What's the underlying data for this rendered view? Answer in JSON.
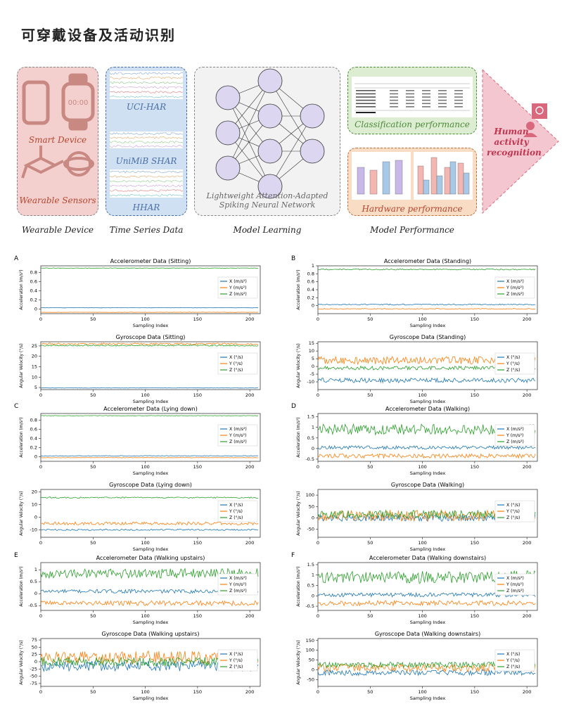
{
  "title": "可穿戴设备及活动识别",
  "pipeline": {
    "wearable": {
      "smart_device": "Smart Device",
      "sensors": "Wearable Sensors",
      "clock_text": "00:00"
    },
    "datasets": [
      "UCI-HAR",
      "UniMiB SHAR",
      "HHAR"
    ],
    "model": {
      "caption": "Lightweight Attention-Adapted Spiking Neural Network"
    },
    "performance": {
      "classification": "Classification performance",
      "hardware": "Hardware performance"
    },
    "result": "Human activity recognition",
    "stages": [
      "Wearable Device",
      "Time Series Data",
      "Model Learning",
      "Model Performance"
    ]
  },
  "chart_data": [
    {
      "panel": "A",
      "type": "line",
      "title": "Accelerometer Data (Sitting)",
      "xlabel": "Sampling Index",
      "ylabel": "Acceleration (m/s²)",
      "xlim": [
        0,
        210
      ],
      "ylim": [
        -0.1,
        0.95
      ],
      "xticks": [
        0,
        50,
        100,
        150,
        200
      ],
      "yticks": [
        0.0,
        0.2,
        0.4,
        0.6,
        0.8
      ],
      "series": [
        {
          "name": "X (m/s²)",
          "level": 0.03,
          "noise": 0.004,
          "color": "#1f77b4"
        },
        {
          "name": "Y (m/s²)",
          "level": -0.07,
          "noise": 0.004,
          "color": "#ff7f0e"
        },
        {
          "name": "Z (m/s²)",
          "level": 0.9,
          "noise": 0.005,
          "color": "#2ca02c"
        }
      ]
    },
    {
      "panel": "A",
      "type": "line",
      "title": "Gyroscope Data (Sitting)",
      "xlabel": "Sampling Index",
      "ylabel": "Angular Velocity (°/s)",
      "xlim": [
        0,
        210
      ],
      "ylim": [
        4,
        27
      ],
      "xticks": [
        0,
        50,
        100,
        150,
        200
      ],
      "yticks": [
        5,
        10,
        15,
        20,
        25
      ],
      "series": [
        {
          "name": "X (°/s)",
          "level": 4.8,
          "noise": 0.1,
          "color": "#1f77b4"
        },
        {
          "name": "Y (°/s)",
          "level": 26,
          "noise": 0.4,
          "color": "#ff7f0e"
        },
        {
          "name": "Z (°/s)",
          "level": 25.2,
          "noise": 0.3,
          "color": "#2ca02c"
        }
      ]
    },
    {
      "panel": "B",
      "type": "line",
      "title": "Accelerometer Data (Standing)",
      "xlabel": "Sampling Index",
      "ylabel": "Acceleration (m/s²)",
      "xlim": [
        0,
        210
      ],
      "ylim": [
        -0.2,
        1.0
      ],
      "xticks": [
        0,
        50,
        100,
        150,
        200
      ],
      "yticks": [
        0.0,
        0.2,
        0.4,
        0.6,
        0.8,
        1.0
      ],
      "series": [
        {
          "name": "X (m/s²)",
          "level": 0.03,
          "noise": 0.015,
          "color": "#1f77b4"
        },
        {
          "name": "Y (m/s²)",
          "level": -0.08,
          "noise": 0.01,
          "color": "#ff7f0e"
        },
        {
          "name": "Z (m/s²)",
          "level": 0.91,
          "noise": 0.015,
          "color": "#2ca02c"
        }
      ]
    },
    {
      "panel": "B",
      "type": "line",
      "title": "Gyroscope Data (Standing)",
      "xlabel": "Sampling Index",
      "ylabel": "Angular Velocity (°/s)",
      "xlim": [
        0,
        210
      ],
      "ylim": [
        -15,
        16
      ],
      "xticks": [
        0,
        50,
        100,
        150,
        200
      ],
      "yticks": [
        -10,
        -5,
        0,
        5,
        10,
        15
      ],
      "series": [
        {
          "name": "X (°/s)",
          "level": -9,
          "noise": 1.5,
          "color": "#1f77b4"
        },
        {
          "name": "Y (°/s)",
          "level": 4,
          "noise": 2.5,
          "color": "#ff7f0e"
        },
        {
          "name": "Z (°/s)",
          "level": -1,
          "noise": 1.2,
          "color": "#2ca02c"
        }
      ]
    },
    {
      "panel": "C",
      "type": "line",
      "title": "Accelerometer Data (Lying down)",
      "xlabel": "Sampling Index",
      "ylabel": "Acceleration (m/s²)",
      "xlim": [
        0,
        210
      ],
      "ylim": [
        -0.1,
        0.95
      ],
      "xticks": [
        0,
        50,
        100,
        150,
        200
      ],
      "yticks": [
        0.0,
        0.2,
        0.4,
        0.6,
        0.8
      ],
      "series": [
        {
          "name": "X (m/s²)",
          "level": 0.02,
          "noise": 0.005,
          "color": "#1f77b4"
        },
        {
          "name": "Y (m/s²)",
          "level": -0.02,
          "noise": 0.005,
          "color": "#ff7f0e"
        },
        {
          "name": "Z (m/s²)",
          "level": 0.9,
          "noise": 0.006,
          "color": "#2ca02c"
        }
      ]
    },
    {
      "panel": "C",
      "type": "line",
      "title": "Gyroscope Data (Lying down)",
      "xlabel": "Sampling Index",
      "ylabel": "Angular Velocity (°/s)",
      "xlim": [
        0,
        210
      ],
      "ylim": [
        -16,
        22
      ],
      "xticks": [
        0,
        50,
        100,
        150,
        200
      ],
      "yticks": [
        -10,
        0,
        10,
        20
      ],
      "series": [
        {
          "name": "X (°/s)",
          "level": -10,
          "noise": 0.6,
          "color": "#1f77b4"
        },
        {
          "name": "Y (°/s)",
          "level": -5,
          "noise": 1.2,
          "color": "#ff7f0e"
        },
        {
          "name": "Z (°/s)",
          "level": 15.5,
          "noise": 0.5,
          "color": "#2ca02c"
        }
      ]
    },
    {
      "panel": "D",
      "type": "line",
      "title": "Accelerometer Data (Walking)",
      "xlabel": "Sampling Index",
      "ylabel": "Acceleration (m/s²)",
      "xlim": [
        0,
        210
      ],
      "ylim": [
        -0.6,
        1.65
      ],
      "xticks": [
        0,
        50,
        100,
        150,
        200
      ],
      "yticks": [
        -0.5,
        0.0,
        0.5,
        1.0,
        1.5
      ],
      "series": [
        {
          "name": "X (m/s²)",
          "level": 0.05,
          "noise": 0.08,
          "color": "#1f77b4"
        },
        {
          "name": "Y (m/s²)",
          "level": -0.35,
          "noise": 0.1,
          "color": "#ff7f0e"
        },
        {
          "name": "Z (m/s²)",
          "level": 0.9,
          "noise": 0.25,
          "color": "#2ca02c"
        }
      ]
    },
    {
      "panel": "D",
      "type": "line",
      "title": "Gyroscope Data (Walking)",
      "xlabel": "Sampling Index",
      "ylabel": "Angular Velocity (°/s)",
      "xlim": [
        0,
        210
      ],
      "ylim": [
        -85,
        125
      ],
      "xticks": [
        0,
        50,
        100,
        150,
        200
      ],
      "yticks": [
        -50,
        0,
        50,
        100
      ],
      "series": [
        {
          "name": "X (°/s)",
          "level": 0,
          "noise": 15,
          "color": "#1f77b4"
        },
        {
          "name": "Y (°/s)",
          "level": 10,
          "noise": 25,
          "color": "#ff7f0e"
        },
        {
          "name": "Z (°/s)",
          "level": 15,
          "noise": 18,
          "color": "#2ca02c"
        }
      ]
    },
    {
      "panel": "E",
      "type": "line",
      "title": "Accelerometer Data (Walking upstairs)",
      "xlabel": "Sampling Index",
      "ylabel": "Acceleration (m/s²)",
      "xlim": [
        0,
        210
      ],
      "ylim": [
        -0.7,
        1.3
      ],
      "xticks": [
        0,
        50,
        100,
        150,
        200
      ],
      "yticks": [
        -0.5,
        0.0,
        0.5,
        1.0
      ],
      "series": [
        {
          "name": "X (m/s²)",
          "level": 0.1,
          "noise": 0.08,
          "color": "#1f77b4"
        },
        {
          "name": "Y (m/s²)",
          "level": -0.4,
          "noise": 0.1,
          "color": "#ff7f0e"
        },
        {
          "name": "Z (m/s²)",
          "level": 0.85,
          "noise": 0.2,
          "color": "#2ca02c"
        }
      ]
    },
    {
      "panel": "E",
      "type": "line",
      "title": "Gyroscope Data (Walking upstairs)",
      "xlabel": "Sampling Index",
      "ylabel": "Angular Velocity (°/s)",
      "xlim": [
        0,
        210
      ],
      "ylim": [
        -85,
        80
      ],
      "xticks": [
        0,
        50,
        100,
        150,
        200
      ],
      "yticks": [
        -75,
        -50,
        -25,
        0,
        25,
        50,
        75
      ],
      "series": [
        {
          "name": "X (°/s)",
          "level": -15,
          "noise": 18,
          "color": "#1f77b4"
        },
        {
          "name": "Y (°/s)",
          "level": 15,
          "noise": 22,
          "color": "#ff7f0e"
        },
        {
          "name": "Z (°/s)",
          "level": 0,
          "noise": 16,
          "color": "#2ca02c"
        }
      ]
    },
    {
      "panel": "F",
      "type": "line",
      "title": "Accelerometer Data (Walking downstairs)",
      "xlabel": "Sampling Index",
      "ylabel": "Acceleration (m/s²)",
      "xlim": [
        0,
        210
      ],
      "ylim": [
        -0.7,
        1.6
      ],
      "xticks": [
        0,
        50,
        100,
        150,
        200
      ],
      "yticks": [
        -0.5,
        0.0,
        0.5,
        1.0,
        1.5
      ],
      "series": [
        {
          "name": "X (m/s²)",
          "level": 0.05,
          "noise": 0.1,
          "color": "#1f77b4"
        },
        {
          "name": "Y (m/s²)",
          "level": -0.35,
          "noise": 0.12,
          "color": "#ff7f0e"
        },
        {
          "name": "Z (m/s²)",
          "level": 0.9,
          "noise": 0.3,
          "color": "#2ca02c"
        }
      ]
    },
    {
      "panel": "F",
      "type": "line",
      "title": "Gyroscope Data (Walking downstairs)",
      "xlabel": "Sampling Index",
      "ylabel": "Angular Velocity (°/s)",
      "xlim": [
        0,
        210
      ],
      "ylim": [
        -85,
        160
      ],
      "xticks": [
        0,
        50,
        100,
        150,
        200
      ],
      "yticks": [
        -50,
        0,
        50,
        100,
        150
      ],
      "series": [
        {
          "name": "X (°/s)",
          "level": -15,
          "noise": 15,
          "color": "#1f77b4"
        },
        {
          "name": "Y (°/s)",
          "level": 10,
          "noise": 20,
          "color": "#ff7f0e"
        },
        {
          "name": "Z (°/s)",
          "level": 25,
          "noise": 15,
          "color": "#2ca02c"
        }
      ]
    }
  ]
}
